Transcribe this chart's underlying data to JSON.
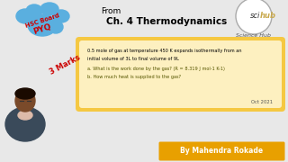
{
  "bg_color": "#e8e8e8",
  "title_from": "From",
  "title_chapter": "Ch. 4 Thermodynamics",
  "hsc_line1": "HSC Board",
  "hsc_line2": "PYQ",
  "hsc_bg": "#5aafdf",
  "hsc_color": "#cc0000",
  "marks_text": "3 Marks",
  "marks_color": "#cc0000",
  "question_box_bg": "#f5c842",
  "question_box_inner": "#fdf0c0",
  "question_line1": "0.5 mole of gas at temperature 450 K expands isothermally from an",
  "question_line2": "initial volume of 3L to final volume of 9L",
  "question_line3": "a. What is the work done by the gas? (R = 8.319 J mol-1 K-1)",
  "question_line4": "b. How much heat is supplied to the gas?",
  "date_text": "Oct 2021",
  "logo_text1": "scihub",
  "logo_text2": "Science Hub",
  "logo_circle_color": "#c8a84b",
  "byline": "By Mahendra Rokade",
  "byline_bg": "#e8a000",
  "byline_color": "#ffffff",
  "person_skin": "#7a4a2a",
  "person_suit": "#3a4a5a"
}
